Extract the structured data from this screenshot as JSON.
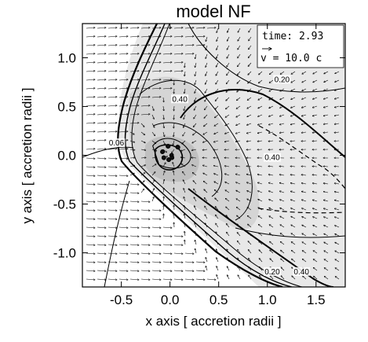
{
  "chart_data": {
    "type": "vector-contour",
    "title": "model NF",
    "xlabel": "x axis [ accretion radii ]",
    "ylabel": "y axis [ accretion radii ]",
    "xlim": [
      -0.9,
      1.8
    ],
    "ylim": [
      -1.35,
      1.35
    ],
    "x_ticks": [
      -0.5,
      0.0,
      0.5,
      1.0,
      1.5
    ],
    "x_tick_labels": [
      "-0.5",
      "0.0",
      "0.5",
      "1.0",
      "1.5"
    ],
    "y_ticks": [
      -1.0,
      -0.5,
      0.0,
      0.5,
      1.0
    ],
    "y_tick_labels": [
      "-1.0",
      "-0.5",
      "0.0",
      "0.5",
      "1.0"
    ],
    "legend": {
      "time_text": "time: 2.93",
      "vel_prefix": "v = 10.0 c",
      "placement": "top-right"
    },
    "contour_labels": [
      {
        "text": "0.40",
        "x": 0.1,
        "y": 0.55
      },
      {
        "text": "0.20",
        "x": 1.15,
        "y": 0.75
      },
      {
        "text": "0.06",
        "x": -0.55,
        "y": 0.1
      },
      {
        "text": "0.40",
        "x": 1.05,
        "y": -0.05
      },
      {
        "text": "0.20",
        "x": 1.05,
        "y": -1.22
      },
      {
        "text": "0.40",
        "x": 1.35,
        "y": -1.22
      }
    ],
    "shock_cone_apex": [
      -0.5,
      0.0
    ],
    "accretor_position": [
      0.0,
      0.0
    ],
    "grid": false
  }
}
